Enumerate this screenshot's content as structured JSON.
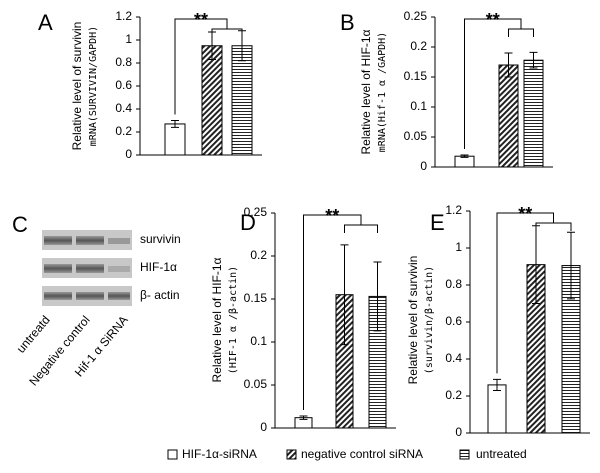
{
  "chart_data": [
    {
      "type": "bar",
      "panel": "A",
      "ylabel": [
        "Relative level of survivin",
        "mRNA(SURVIVIN/GAPDH)"
      ],
      "annotation": "**",
      "categories": [
        null,
        null,
        null
      ],
      "values": [
        0.27,
        0.95,
        0.95
      ],
      "errors": [
        0.03,
        0.12,
        0.13
      ],
      "ylim": [
        0,
        1.2
      ],
      "yticks": [
        0,
        0.2,
        0.4,
        0.6,
        0.8,
        1,
        1.2
      ]
    },
    {
      "type": "bar",
      "panel": "B",
      "ylabel": [
        "Relative level of HIF-1α",
        "mRNA(Hif-1 α /GAPDH)"
      ],
      "annotation": "**",
      "categories": [
        null,
        null,
        null
      ],
      "values": [
        0.018,
        0.17,
        0.178
      ],
      "errors": [
        0.002,
        0.02,
        0.013
      ],
      "ylim": [
        0,
        0.25
      ],
      "yticks": [
        0,
        0.05,
        0.1,
        0.15,
        0.2,
        0.25
      ]
    },
    {
      "type": "bar",
      "panel": "D",
      "ylabel": [
        "Relative level of HIF-1α",
        "(HIF-1 α /β-actin)"
      ],
      "annotation": "**",
      "categories": [
        null,
        null,
        null
      ],
      "values": [
        0.012,
        0.155,
        0.153
      ],
      "errors": [
        0.002,
        0.058,
        0.04
      ],
      "ylim": [
        0,
        0.25
      ],
      "yticks": [
        0,
        0.05,
        0.1,
        0.15,
        0.2,
        0.25
      ]
    },
    {
      "type": "bar",
      "panel": "E",
      "ylabel": [
        "Relative level of survivin",
        "(survivin/β-actin)"
      ],
      "annotation": "**",
      "categories": [
        null,
        null,
        null
      ],
      "values": [
        0.26,
        0.91,
        0.905
      ],
      "errors": [
        0.03,
        0.21,
        0.18
      ],
      "ylim": [
        0,
        1.2
      ],
      "yticks": [
        0,
        0.2,
        0.4,
        0.6,
        0.8,
        1,
        1.2
      ]
    }
  ],
  "blot": {
    "panel": "C",
    "rows": [
      "survivin",
      "HIF-1α",
      "β- actin"
    ],
    "lanes": [
      "untreatd",
      "Negative control",
      "Hif-1 α SiRNA"
    ]
  },
  "legend": [
    "HIF-1α-siRNA",
    "negative control siRNA",
    "untreated"
  ]
}
